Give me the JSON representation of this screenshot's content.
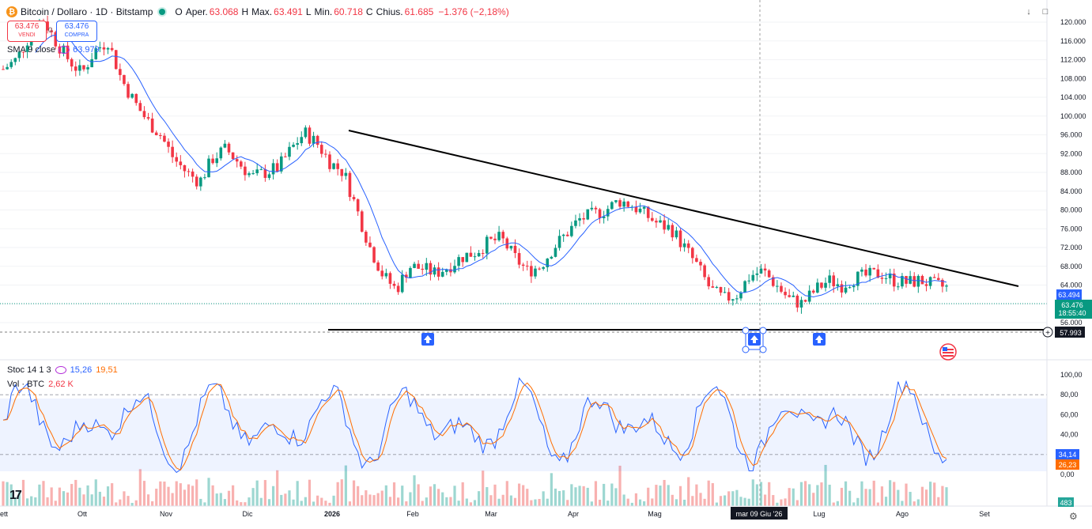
{
  "header": {
    "symbol": "Bitcoin / Dollaro · 1D · Bitstamp",
    "coin_letter": "₿",
    "open_label": "O",
    "open_text": "Aper.",
    "open_value": "63.068",
    "high_label": "H",
    "high_text": "Max.",
    "high_value": "63.491",
    "low_label": "L",
    "low_text": "Min.",
    "low_value": "60.718",
    "close_label": "C",
    "close_text": "Chius.",
    "close_value": "61.685",
    "change": "−1.376 (−2,18%)"
  },
  "trade": {
    "sell_price": "63.476",
    "sell_label": "VENDI",
    "spread": "0",
    "buy_price": "63.476",
    "buy_label": "COMPRA"
  },
  "sma": {
    "label": "SMA 9 close",
    "value": "63.979"
  },
  "stoch": {
    "label": "Stoc 14 1 3",
    "k": "15,26",
    "d": "19,51"
  },
  "volume": {
    "label": "Vol · BTC",
    "value": "2,62 K"
  },
  "price_axis": [
    "120.000",
    "116.000",
    "112.000",
    "108.000",
    "104.000",
    "100.000",
    "96.000",
    "92.000",
    "88.000",
    "84.000",
    "80.000",
    "76.000",
    "72.000",
    "68.000",
    "64.000",
    "60.000",
    "56.000"
  ],
  "price_axis_values": [
    120000,
    116000,
    112000,
    108000,
    104000,
    100000,
    96000,
    92000,
    88000,
    84000,
    80000,
    76000,
    72000,
    68000,
    64000,
    60000,
    56000
  ],
  "price_labels": {
    "sma_tag": "63.494",
    "last_price": "63.476",
    "countdown": "18:55:40",
    "crosshair_price": "57.993",
    "crosshair_value": 57993
  },
  "osc_axis": [
    "100,00",
    "80,00",
    "60,00",
    "40,00",
    "20,00",
    "0,00"
  ],
  "osc_labels": {
    "k": "34,14",
    "d": "26,23",
    "vol": "483"
  },
  "time_axis": [
    "ett",
    "Ott",
    "Nov",
    "Dic",
    "2026",
    "Feb",
    "Mar",
    "Apr",
    "Mag",
    "Giu",
    "Lug",
    "Ago",
    "Set"
  ],
  "crosshair_date": "mar 09 Giu '26",
  "colors": {
    "up": "#089981",
    "down": "#f23645",
    "sma": "#2962ff",
    "stoch_k": "#2962ff",
    "stoch_d": "#ff6d00",
    "arrow": "#2962ff"
  },
  "icons": {
    "coin": "bitcoin-icon",
    "status": "market-open-dot",
    "eye": "visibility-icon",
    "arrow": "arrow-up-marker-icon",
    "flag": "us-flag-icon",
    "logo": "tradingview-logo-icon",
    "gear": "gear-icon",
    "down": "download-icon",
    "expand": "maximize-icon"
  },
  "chart_data": {
    "type": "candlestick",
    "series": [
      {
        "name": "Bitcoin / Dollaro",
        "approx_closes": [
          110000,
          112000,
          117000,
          121000,
          116000,
          112000,
          109000,
          114000,
          116000,
          108000,
          103000,
          99000,
          96000,
          91000,
          88000,
          86000,
          91000,
          93000,
          90000,
          87000,
          88000,
          89000,
          93000,
          96500,
          94000,
          90000,
          88000,
          80000,
          72000,
          66000,
          63000,
          68000,
          67500,
          66500,
          68000,
          70000,
          71000,
          73000,
          74000,
          70000,
          67000,
          68000,
          72000,
          75000,
          78000,
          79000,
          80000,
          82000,
          81000,
          79000,
          77000,
          76000,
          72000,
          68000,
          63000,
          61000,
          62000,
          66000,
          67000,
          64000,
          61000,
          60000,
          63000,
          65000,
          64000,
          65500,
          66000,
          66500,
          65000,
          64500,
          65000,
          64000,
          63476
        ]
      }
    ],
    "trendlines": [
      {
        "name": "resistance",
        "from": {
          "date": "2026-01-09",
          "price": 98500
        },
        "to": {
          "date": "2026-08-26",
          "price": 67000
        }
      },
      {
        "name": "support",
        "from": {
          "date": "2025-12-20",
          "price": 58000
        },
        "to": {
          "date": "2026-09-30",
          "price": 58000
        }
      }
    ],
    "sma_period": 9,
    "ylim": [
      56000,
      122000
    ],
    "oscillator": {
      "name": "Stoc 14 1 3",
      "ylim": [
        0,
        100
      ],
      "bands": [
        20,
        80
      ]
    }
  }
}
